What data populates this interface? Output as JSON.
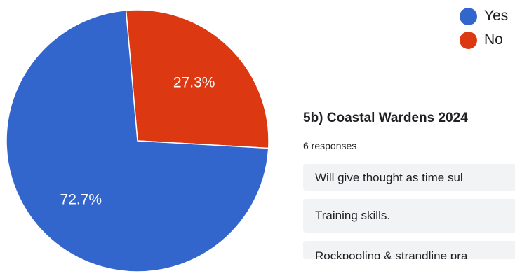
{
  "chart_data": {
    "type": "pie",
    "slices": [
      {
        "label": "No",
        "value": 27.3,
        "display": "27.3%",
        "color": "#dc3912"
      },
      {
        "label": "Yes",
        "value": 72.7,
        "display": "72.7%",
        "color": "#3366cc"
      }
    ]
  },
  "legend": [
    {
      "label": "Yes",
      "color": "#3366cc"
    },
    {
      "label": "No",
      "color": "#dc3912"
    }
  ],
  "question": {
    "title": "5b) Coastal Wardens 2024",
    "responses_count": "6 responses",
    "responses": [
      "Will give thought as time sul",
      "Training skills.",
      "Rockpooling & strandline pra"
    ]
  }
}
